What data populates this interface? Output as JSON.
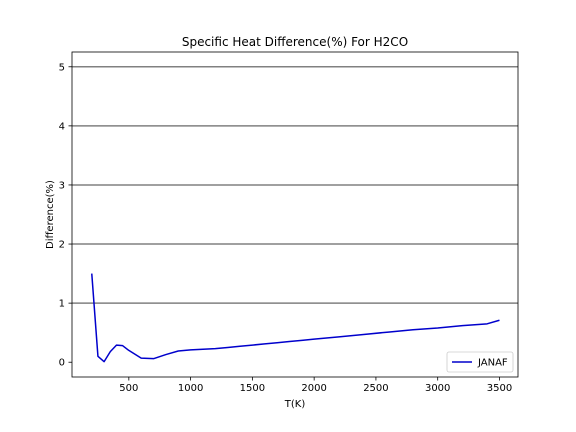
{
  "chart_data": {
    "type": "line",
    "title": "Specific Heat Difference(%) For H2CO",
    "xlabel": "T(K)",
    "ylabel": "Difference(%)",
    "xlim": [
      40,
      3650
    ],
    "ylim": [
      -0.25,
      5.25
    ],
    "xticks": [
      500,
      1000,
      1500,
      2000,
      2500,
      3000,
      3500
    ],
    "yticks": [
      0,
      1,
      2,
      3,
      4,
      5
    ],
    "gridlines_y": [
      1,
      2,
      3,
      4,
      5
    ],
    "grid": "horizontal",
    "legend_position": "lower-right",
    "series": [
      {
        "name": "JANAF",
        "color": "#0000cc",
        "x": [
          200,
          250,
          300,
          350,
          400,
          450,
          500,
          600,
          700,
          800,
          900,
          1000,
          1100,
          1200,
          1300,
          1400,
          1500,
          1600,
          1700,
          1800,
          1900,
          2000,
          2200,
          2400,
          2600,
          2800,
          3000,
          3200,
          3400,
          3500
        ],
        "y": [
          1.5,
          0.1,
          0.01,
          0.18,
          0.29,
          0.28,
          0.2,
          0.07,
          0.06,
          0.13,
          0.19,
          0.21,
          0.22,
          0.23,
          0.25,
          0.27,
          0.29,
          0.31,
          0.33,
          0.35,
          0.37,
          0.39,
          0.43,
          0.47,
          0.51,
          0.55,
          0.58,
          0.62,
          0.65,
          0.71
        ]
      }
    ]
  }
}
